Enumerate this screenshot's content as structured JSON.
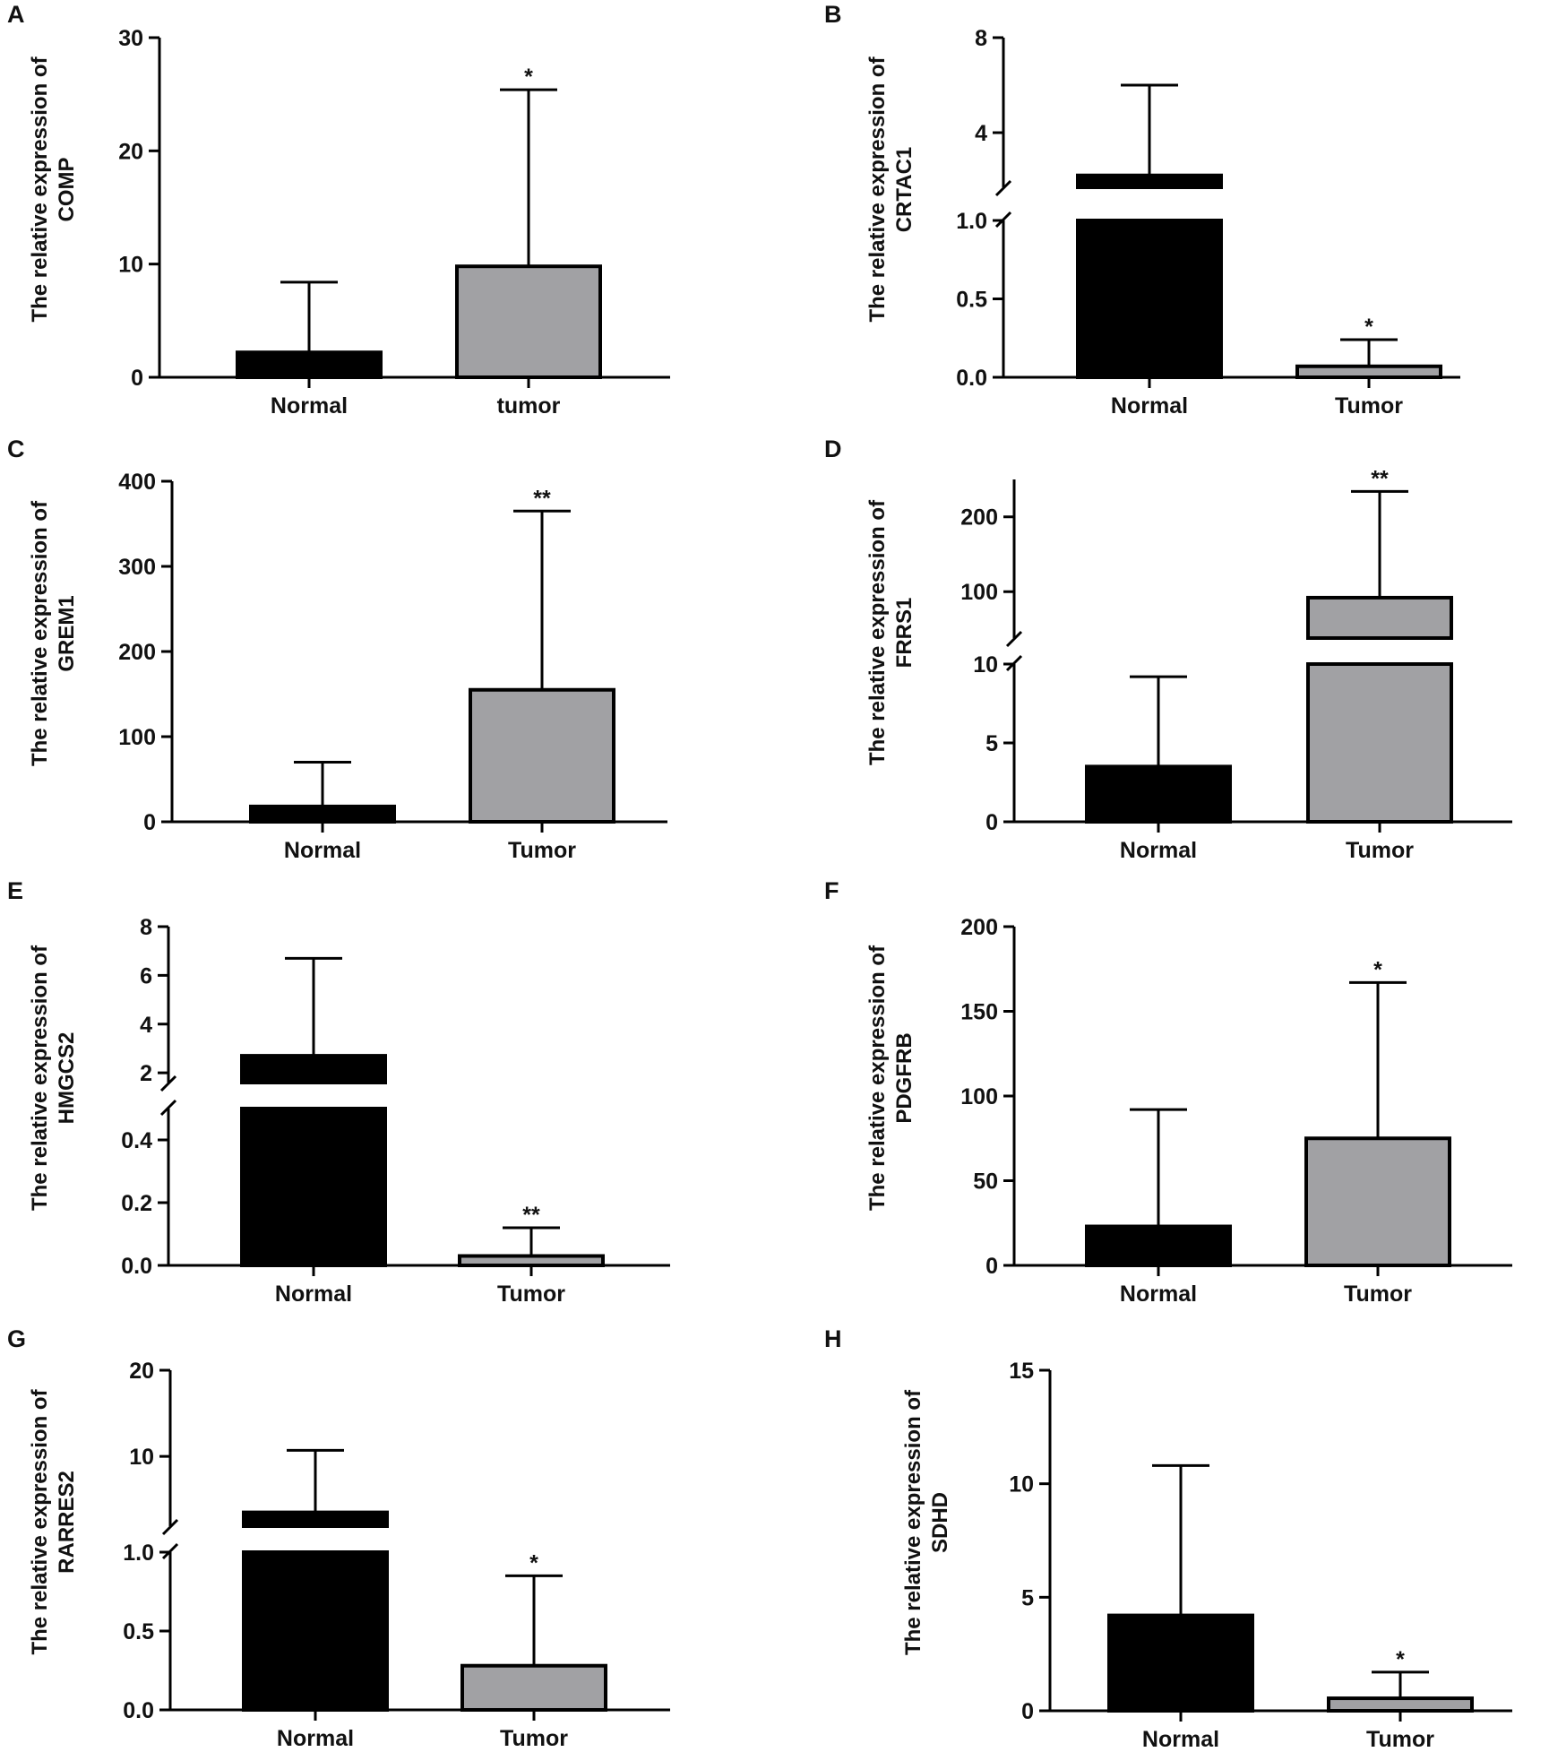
{
  "colors": {
    "normal": "#000000",
    "tumor": "#a1a1a4",
    "axis": "#000000"
  },
  "chart_data": [
    {
      "panel": "A",
      "type": "bar",
      "ylabel": [
        "The relative expression of",
        "COMP"
      ],
      "categories": [
        "Normal",
        "tumor"
      ],
      "values": [
        2.2,
        9.8
      ],
      "error_upper": [
        8.4,
        25.4
      ],
      "significance": [
        "",
        "*"
      ],
      "y_ticks": [
        "0",
        "10",
        "20",
        "30"
      ],
      "ylim": [
        0,
        30
      ],
      "break": false
    },
    {
      "panel": "B",
      "type": "bar",
      "ylabel": [
        "The relative expression of",
        "CRTAC1"
      ],
      "categories": [
        "Normal",
        "Tumor"
      ],
      "values": [
        2.2,
        0.07
      ],
      "error_upper": [
        6.0,
        0.24
      ],
      "significance": [
        "",
        "*"
      ],
      "y_ticks": [
        "0.0",
        "0.5",
        "1.0",
        "4",
        "8"
      ],
      "lower_range": [
        0,
        1.0
      ],
      "upper_range": [
        1.7,
        8
      ],
      "break": true
    },
    {
      "panel": "C",
      "type": "bar",
      "ylabel": [
        "The relative expression of",
        "GREM1"
      ],
      "categories": [
        "Normal",
        "Tumor"
      ],
      "values": [
        18,
        155
      ],
      "error_upper": [
        70,
        365
      ],
      "significance": [
        "",
        "**"
      ],
      "y_ticks": [
        "0",
        "100",
        "200",
        "300",
        "400"
      ],
      "ylim": [
        0,
        400
      ],
      "break": false
    },
    {
      "panel": "D",
      "type": "bar",
      "ylabel": [
        "The relative expression of",
        "FRRS1"
      ],
      "categories": [
        "Normal",
        "Tumor"
      ],
      "values": [
        3.5,
        92
      ],
      "error_upper": [
        9.2,
        234
      ],
      "significance": [
        "",
        "**"
      ],
      "y_ticks": [
        "0",
        "5",
        "10",
        "100",
        "200"
      ],
      "lower_range": [
        0,
        10
      ],
      "upper_range": [
        38,
        250
      ],
      "break": true
    },
    {
      "panel": "E",
      "type": "bar",
      "ylabel": [
        "The relative expression of",
        "HMGCS2"
      ],
      "categories": [
        "Normal",
        "Tumor"
      ],
      "values": [
        2.7,
        0.03
      ],
      "error_upper": [
        6.7,
        0.12
      ],
      "significance": [
        "",
        "**"
      ],
      "y_ticks": [
        "0.0",
        "0.2",
        "0.4",
        "2",
        "4",
        "6",
        "8"
      ],
      "lower_range": [
        0,
        0.5
      ],
      "upper_range": [
        1.6,
        8
      ],
      "break": true
    },
    {
      "panel": "F",
      "type": "bar",
      "ylabel": [
        "The relative expression of",
        "PDGFRB"
      ],
      "categories": [
        "Normal",
        "Tumor"
      ],
      "values": [
        23,
        75
      ],
      "error_upper": [
        92,
        167
      ],
      "significance": [
        "",
        "*"
      ],
      "y_ticks": [
        "0",
        "50",
        "100",
        "150",
        "200"
      ],
      "ylim": [
        0,
        200
      ],
      "break": false
    },
    {
      "panel": "G",
      "type": "bar",
      "ylabel": [
        "The relative expression of",
        "RARRES2"
      ],
      "categories": [
        "Normal",
        "Tumor"
      ],
      "values": [
        3.5,
        0.28
      ],
      "error_upper": [
        10.7,
        0.85
      ],
      "significance": [
        "",
        "*"
      ],
      "y_ticks": [
        "0.0",
        "0.5",
        "1.0",
        "10",
        "20"
      ],
      "lower_range": [
        0,
        1.0
      ],
      "upper_range": [
        1.9,
        20
      ],
      "break": true
    },
    {
      "panel": "H",
      "type": "bar",
      "ylabel": [
        "The relative expression of",
        "SDHD"
      ],
      "categories": [
        "Normal",
        "Tumor"
      ],
      "values": [
        4.2,
        0.55
      ],
      "error_upper": [
        10.8,
        1.7
      ],
      "significance": [
        "",
        "*"
      ],
      "y_ticks": [
        "0",
        "5",
        "10",
        "15"
      ],
      "ylim": [
        0,
        15
      ],
      "break": false
    }
  ]
}
